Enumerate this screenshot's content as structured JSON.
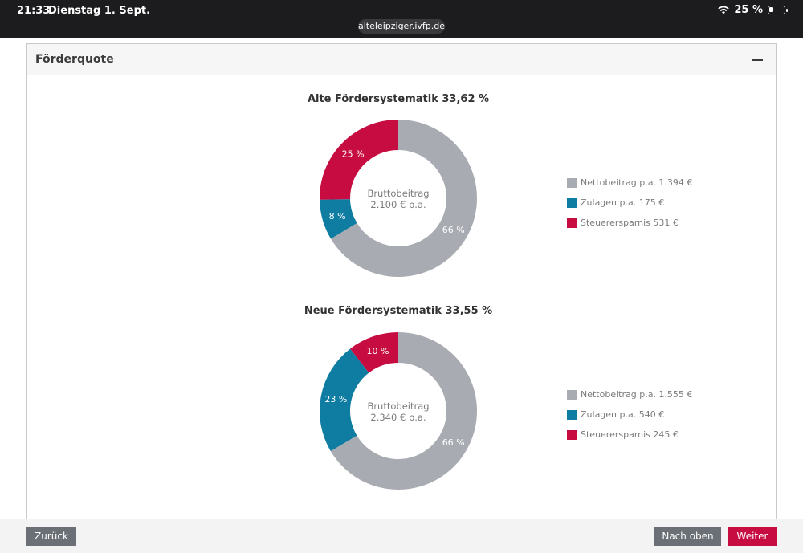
{
  "status_bar": {
    "time": "21:33",
    "date": "Dienstag 1. Sept.",
    "battery_percent": "25 %",
    "battery_level": 0.25,
    "url": "alteleipziger.ivfp.de"
  },
  "card": {
    "title": "Förderquote"
  },
  "colors": {
    "netto": "#a9abb2",
    "zulagen": "#0f7ca2",
    "steuer": "#c70c41"
  },
  "chart_data": [
    {
      "type": "pie",
      "title": "Alte Fördersystematik 33,62 %",
      "center_label": [
        "Bruttobeitrag",
        "2.100 € p.a."
      ],
      "slices": [
        {
          "label": "Steuerersparnis 531 €",
          "value": 531,
          "percent_label": "25 %",
          "color": "#c70c41"
        },
        {
          "label": "Nettobeitrag p.a. 1.394 €",
          "value": 1394,
          "percent_label": "66 %",
          "color": "#a9abb2"
        },
        {
          "label": "Zulagen p.a. 175 €",
          "value": 175,
          "percent_label": "8 %",
          "color": "#0f7ca2"
        }
      ],
      "legend": [
        "Nettobeitrag p.a. 1.394 €",
        "Zulagen p.a. 175 €",
        "Steuerersparnis 531 €"
      ]
    },
    {
      "type": "pie",
      "title": "Neue Fördersystematik 33,55 %",
      "center_label": [
        "Bruttobeitrag",
        "2.340 € p.a."
      ],
      "slices": [
        {
          "label": "Steuerersparnis 245 €",
          "value": 245,
          "percent_label": "10 %",
          "color": "#c70c41"
        },
        {
          "label": "Nettobeitrag p.a. 1.555 €",
          "value": 1555,
          "percent_label": "66 %",
          "color": "#a9abb2"
        },
        {
          "label": "Zulagen p.a. 540 €",
          "value": 540,
          "percent_label": "23 %",
          "color": "#0f7ca2"
        }
      ],
      "legend": [
        "Nettobeitrag p.a. 1.555 €",
        "Zulagen p.a. 540 €",
        "Steuerersparnis 245 €"
      ]
    }
  ],
  "footer": {
    "back_label": "Zurück",
    "top_label": "Nach oben",
    "next_label": "Weiter"
  }
}
